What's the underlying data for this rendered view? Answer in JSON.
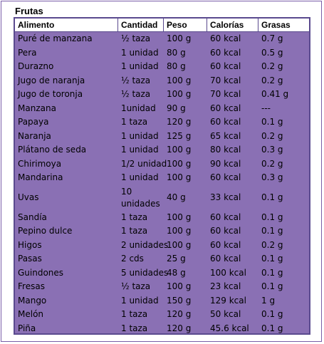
{
  "title": "Frutas",
  "columns": [
    "Alimento",
    "Cantidad",
    "Peso",
    "Calorías",
    "Grasas"
  ],
  "rows": [
    [
      "Puré de manzana",
      "½ taza",
      "100 g",
      "60 kcal",
      "0.7 g"
    ],
    [
      "Pera",
      "1 unidad",
      "80 g",
      "60 kcal",
      "0.5 g"
    ],
    [
      "Durazno",
      "1 unidad",
      "80 g",
      "60 kcal",
      "0.2 g"
    ],
    [
      "Jugo de naranja",
      "½ taza",
      "100 g",
      "70 kcal",
      "0.2 g"
    ],
    [
      "Jugo de toronja",
      "½ taza",
      "100 g",
      "70 kcal",
      "0.41 g"
    ],
    [
      "Manzana",
      "1unidad",
      "90 g",
      "60 kcal",
      "---"
    ],
    [
      "Papaya",
      "1 taza",
      "120 g",
      "60 kcal",
      "0.1 g"
    ],
    [
      "Naranja",
      "1 unidad",
      "125 g",
      "65 kcal",
      "0.2 g"
    ],
    [
      "Plátano de seda",
      "1 unidad",
      "100 g",
      "80 kcal",
      "0.3 g"
    ],
    [
      "Chirimoya",
      "1/2 unidad",
      "100 g",
      "90 kcal",
      "0.2 g"
    ],
    [
      "Mandarina",
      "1 unidad",
      "100 g",
      "60 kcal",
      "0.3 g"
    ],
    [
      "Uvas",
      "10 unidades",
      "40 g",
      "33 kcal",
      "0.1 g"
    ],
    [
      "Sandía",
      "1 taza",
      "100 g",
      "60 kcal",
      "0.1 g"
    ],
    [
      "Pepino dulce",
      "1 taza",
      "100 g",
      "60 kcal",
      "0.1 g"
    ],
    [
      "Higos",
      "2 unidades",
      "100 g",
      "60 kcal",
      "0.2 g"
    ],
    [
      "Pasas",
      "2 cds",
      "25 g",
      "60 kcal",
      "0.1 g"
    ],
    [
      "Guindones",
      "5 unidades",
      "48 g",
      "100 kcal",
      "0.1 g"
    ],
    [
      "Fresas",
      "½ taza",
      "100 g",
      "23 kcal",
      "0.1 g"
    ],
    [
      "Mango",
      "1 unidad",
      "150 g",
      "129 kcal",
      "1 g"
    ],
    [
      "Melón",
      "1 taza",
      "120 g",
      "50 kcal",
      "0.1 g"
    ],
    [
      "Piña",
      "1 taza",
      "120 g",
      "45.6 kcal",
      "0.1 g"
    ]
  ],
  "colors": {
    "table_bg": "#8a70b4",
    "border": "#5a4a8e"
  }
}
